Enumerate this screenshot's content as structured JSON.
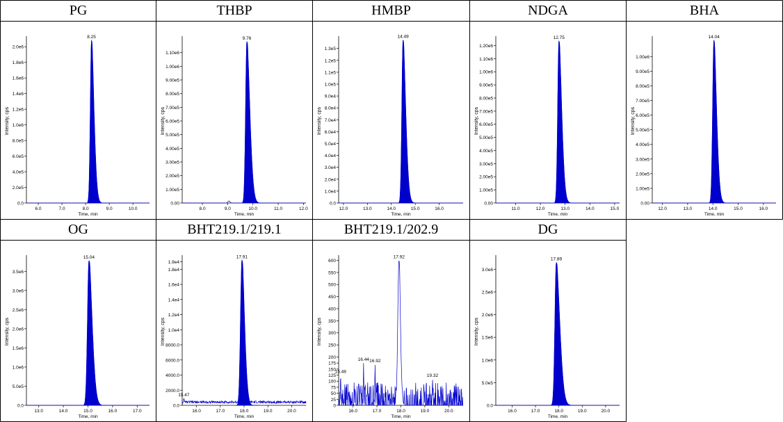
{
  "table": {
    "headers_row1": [
      "PG",
      "THBP",
      "HMBP",
      "NDGA",
      "BHA"
    ],
    "headers_row2": [
      "OG",
      "BHT219.1/219.1",
      "BHT219.1/202.9",
      "DG",
      ""
    ]
  },
  "chart_data": [
    {
      "id": "PG",
      "type": "line",
      "xlabel": "Time, min",
      "ylabel": "Intensity, cps",
      "xlim": [
        5.5,
        10.7
      ],
      "ylim": [
        0,
        2100000
      ],
      "xticks": [
        6.0,
        7.0,
        8.0,
        9.0,
        10.0
      ],
      "xtick_labels": [
        "6.0",
        "7.0",
        "8.0",
        "9.0",
        "10.0"
      ],
      "yticks": [
        0,
        200000,
        400000,
        600000,
        800000,
        1000000,
        1200000,
        1400000,
        1600000,
        1800000,
        2000000
      ],
      "ytick_labels": [
        "0.0",
        "2.0e5",
        "4.0e5",
        "6.0e5",
        "8.0e5",
        "1.0e6",
        "1.2e6",
        "1.4e6",
        "1.6e6",
        "1.8e6",
        "2.0e6"
      ],
      "peaks": [
        {
          "x": 8.25,
          "y": 2080000,
          "label": "8.25",
          "w": 0.05,
          "tail": 0.12,
          "fill": true
        }
      ],
      "noise": 0
    },
    {
      "id": "THBP",
      "type": "line",
      "xlabel": "Time, min",
      "ylabel": "Intensity, cps",
      "xlim": [
        7.2,
        12.1
      ],
      "ylim": [
        0,
        1200000
      ],
      "xticks": [
        8.0,
        9.0,
        10.0,
        11.0,
        12.0
      ],
      "xtick_labels": [
        "8.0",
        "9.0",
        "10.0",
        "11.0",
        "12.0"
      ],
      "yticks": [
        0,
        100000,
        200000,
        300000,
        400000,
        500000,
        600000,
        700000,
        800000,
        900000,
        1000000,
        1100000
      ],
      "ytick_labels": [
        "0.00",
        "1.00e5",
        "2.00e5",
        "3.00e5",
        "4.00e5",
        "5.00e5",
        "6.00e5",
        "7.00e5",
        "8.00e5",
        "9.00e5",
        "1.00e6",
        "1.10e6"
      ],
      "peaks": [
        {
          "x": 9.76,
          "y": 1180000,
          "label": "9.76",
          "w": 0.05,
          "tail": 0.14,
          "fill": true
        },
        {
          "x": 9.05,
          "y": 15000,
          "label": "",
          "w": 0.04,
          "tail": 0.03,
          "fill": false
        }
      ],
      "noise": 0
    },
    {
      "id": "HMBP",
      "type": "line",
      "xlabel": "Time, min",
      "ylabel": "Intensity, cps",
      "xlim": [
        11.8,
        17.0
      ],
      "ylim": [
        0,
        138000
      ],
      "xticks": [
        12.0,
        13.0,
        14.0,
        15.0,
        16.0
      ],
      "xtick_labels": [
        "12.0",
        "13.0",
        "14.0",
        "15.0",
        "16.0"
      ],
      "yticks": [
        0,
        10000,
        20000,
        30000,
        40000,
        50000,
        60000,
        70000,
        80000,
        90000,
        100000,
        110000,
        120000,
        130000
      ],
      "ytick_labels": [
        "0.0",
        "1.0e4",
        "2.0e4",
        "3.0e4",
        "4.0e4",
        "5.0e4",
        "6.0e4",
        "7.0e4",
        "8.0e4",
        "9.0e4",
        "1.0e5",
        "1.1e5",
        "1.2e5",
        "1.3e5"
      ],
      "peaks": [
        {
          "x": 14.49,
          "y": 137000,
          "label": "14.49",
          "w": 0.05,
          "tail": 0.13,
          "fill": true
        }
      ],
      "noise": 0
    },
    {
      "id": "NDGA",
      "type": "line",
      "xlabel": "Time, min",
      "ylabel": "Intensity, cps",
      "xlim": [
        10.2,
        15.2
      ],
      "ylim": [
        0,
        1250000
      ],
      "xticks": [
        11.0,
        12.0,
        13.0,
        14.0,
        15.0
      ],
      "xtick_labels": [
        "11.0",
        "12.0",
        "13.0",
        "14.0",
        "15.0"
      ],
      "yticks": [
        0,
        100000,
        200000,
        300000,
        400000,
        500000,
        600000,
        700000,
        800000,
        900000,
        1000000,
        1100000,
        1200000
      ],
      "ytick_labels": [
        "0.00",
        "1.00e5",
        "2.00e5",
        "3.00e5",
        "4.00e5",
        "5.00e5",
        "6.00e5",
        "7.00e5",
        "8.00e5",
        "9.00e5",
        "1.00e6",
        "1.10e6",
        "1.20e6"
      ],
      "peaks": [
        {
          "x": 12.75,
          "y": 1235000,
          "label": "12.75",
          "w": 0.05,
          "tail": 0.13,
          "fill": true
        }
      ],
      "noise": 0
    },
    {
      "id": "BHA",
      "type": "line",
      "xlabel": "Time, min",
      "ylabel": "Intensity, cps",
      "xlim": [
        11.6,
        16.5
      ],
      "ylim": [
        0,
        1120000
      ],
      "xticks": [
        12.0,
        13.0,
        14.0,
        15.0,
        16.0
      ],
      "xtick_labels": [
        "12.0",
        "13.0",
        "14.0",
        "15.0",
        "16.0"
      ],
      "yticks": [
        0,
        100000,
        200000,
        300000,
        400000,
        500000,
        600000,
        700000,
        800000,
        900000,
        1000000
      ],
      "ytick_labels": [
        "0.00",
        "1.00e5",
        "2.00e5",
        "3.00e5",
        "4.00e5",
        "5.00e5",
        "6.00e5",
        "7.00e5",
        "8.00e5",
        "9.00e5",
        "1.00e6"
      ],
      "peaks": [
        {
          "x": 14.04,
          "y": 1110000,
          "label": "14.04",
          "w": 0.05,
          "tail": 0.12,
          "fill": true
        }
      ],
      "noise": 0
    },
    {
      "id": "OG",
      "type": "line",
      "xlabel": "Time, min",
      "ylabel": "Intensity, cps",
      "xlim": [
        12.5,
        17.5
      ],
      "ylim": [
        0,
        3850000
      ],
      "xticks": [
        13.0,
        14.0,
        15.0,
        16.0,
        17.0
      ],
      "xtick_labels": [
        "13.0",
        "14.0",
        "15.0",
        "16.0",
        "17.0"
      ],
      "yticks": [
        0,
        500000,
        1000000,
        1500000,
        2000000,
        2500000,
        3000000,
        3500000
      ],
      "ytick_labels": [
        "0.0",
        "5.0e5",
        "1.0e6",
        "1.5e6",
        "2.0e6",
        "2.5e6",
        "3.0e6",
        "3.5e6"
      ],
      "peaks": [
        {
          "x": 15.04,
          "y": 3780000,
          "label": "15.04",
          "w": 0.06,
          "tail": 0.15,
          "fill": true
        }
      ],
      "noise": 0
    },
    {
      "id": "BHT219.1/219.1",
      "type": "line",
      "xlabel": "Time, min",
      "ylabel": "Intensity, cps",
      "xlim": [
        15.4,
        20.6
      ],
      "ylim": [
        0,
        19500
      ],
      "xticks": [
        16.0,
        17.0,
        18.0,
        19.0,
        20.0
      ],
      "xtick_labels": [
        "16.0",
        "17.0",
        "18.0",
        "19.0",
        "20.0"
      ],
      "yticks": [
        0,
        2000,
        4000,
        6000,
        8000,
        10000,
        12000,
        14000,
        16000,
        18000,
        19000
      ],
      "ytick_labels": [
        "0.0",
        "2000.0",
        "4000.0",
        "6000.0",
        "8000.0",
        "1.0e4",
        "1.2e4",
        "1.4e4",
        "1.6e4",
        "1.8e4",
        "1.9e4"
      ],
      "peaks": [
        {
          "x": 17.91,
          "y": 19200,
          "label": "17.91",
          "w": 0.06,
          "tail": 0.12,
          "fill": true
        },
        {
          "x": 15.47,
          "y": 900,
          "label": "15.47",
          "w": 0.02,
          "tail": 0.02,
          "fill": false
        }
      ],
      "noise": 500
    },
    {
      "id": "BHT219.1/202.9",
      "type": "line",
      "xlabel": "Time, min",
      "ylabel": "Intensity, cps",
      "xlim": [
        15.4,
        20.6
      ],
      "ylim": [
        0,
        610
      ],
      "xticks": [
        16.0,
        17.0,
        18.0,
        19.0,
        20.0
      ],
      "xtick_labels": [
        "16.0",
        "17.0",
        "18.0",
        "19.0",
        "20.0"
      ],
      "yticks": [
        0,
        25,
        50,
        75,
        100,
        125,
        150,
        175,
        200,
        250,
        300,
        350,
        400,
        450,
        500,
        550,
        600
      ],
      "ytick_labels": [
        "0",
        "25",
        "50",
        "75",
        "100",
        "125",
        "150",
        "175",
        "200",
        "250",
        "300",
        "350",
        "400",
        "450",
        "500",
        "550",
        "600"
      ],
      "peaks": [
        {
          "x": 17.92,
          "y": 600,
          "label": "17.92",
          "w": 0.05,
          "tail": 0.05,
          "fill": false
        },
        {
          "x": 16.44,
          "y": 175,
          "label": "16.44",
          "w": 0.01,
          "tail": 0.01,
          "fill": false
        },
        {
          "x": 16.92,
          "y": 170,
          "label": "16.92",
          "w": 0.01,
          "tail": 0.01,
          "fill": false
        },
        {
          "x": 15.48,
          "y": 125,
          "label": "15.48",
          "w": 0.01,
          "tail": 0.01,
          "fill": false
        },
        {
          "x": 19.32,
          "y": 110,
          "label": "19.32",
          "w": 0.01,
          "tail": 0.01,
          "fill": false
        }
      ],
      "noise": 95,
      "spiky": true
    },
    {
      "id": "DG",
      "type": "line",
      "xlabel": "Time, min",
      "ylabel": "Intensity, cps",
      "xlim": [
        15.3,
        20.6
      ],
      "ylim": [
        0,
        3250000
      ],
      "xticks": [
        16.0,
        17.0,
        18.0,
        19.0,
        20.0
      ],
      "xtick_labels": [
        "16.0",
        "17.0",
        "18.0",
        "19.0",
        "20.0"
      ],
      "yticks": [
        0,
        500000,
        1000000,
        1500000,
        2000000,
        2500000,
        3000000
      ],
      "ytick_labels": [
        "0.0",
        "5.0e5",
        "1.0e6",
        "1.5e6",
        "2.0e6",
        "2.5e6",
        "3.0e6"
      ],
      "peaks": [
        {
          "x": 17.89,
          "y": 3150000,
          "label": "17.89",
          "w": 0.06,
          "tail": 0.18,
          "fill": true
        }
      ],
      "noise": 0
    }
  ]
}
